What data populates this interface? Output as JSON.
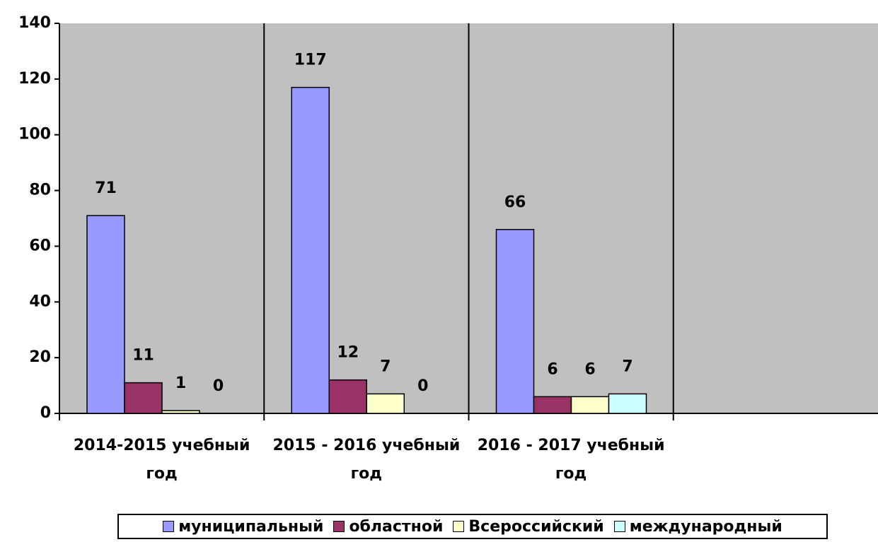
{
  "chart_data": {
    "type": "bar",
    "categories": [
      "2014-2015 учебный год",
      "2015 - 2016 учебный год",
      "2016 - 2017 учебный год",
      null
    ],
    "series": [
      {
        "name": "муниципальный",
        "color": "#9999ff",
        "values": [
          71,
          117,
          66,
          null
        ]
      },
      {
        "name": "областной",
        "color": "#993366",
        "values": [
          11,
          12,
          6,
          null
        ]
      },
      {
        "name": "Всероссийский",
        "color": "#ffffcc",
        "values": [
          1,
          7,
          6,
          null
        ]
      },
      {
        "name": "международный",
        "color": "#ccffff",
        "values": [
          0,
          0,
          7,
          null
        ]
      }
    ],
    "ylim": [
      0,
      140
    ],
    "yticks": [
      0,
      20,
      40,
      60,
      80,
      100,
      120,
      140
    ],
    "grid": false,
    "legend": "bottom",
    "plot_background": "#c0c0c0"
  }
}
